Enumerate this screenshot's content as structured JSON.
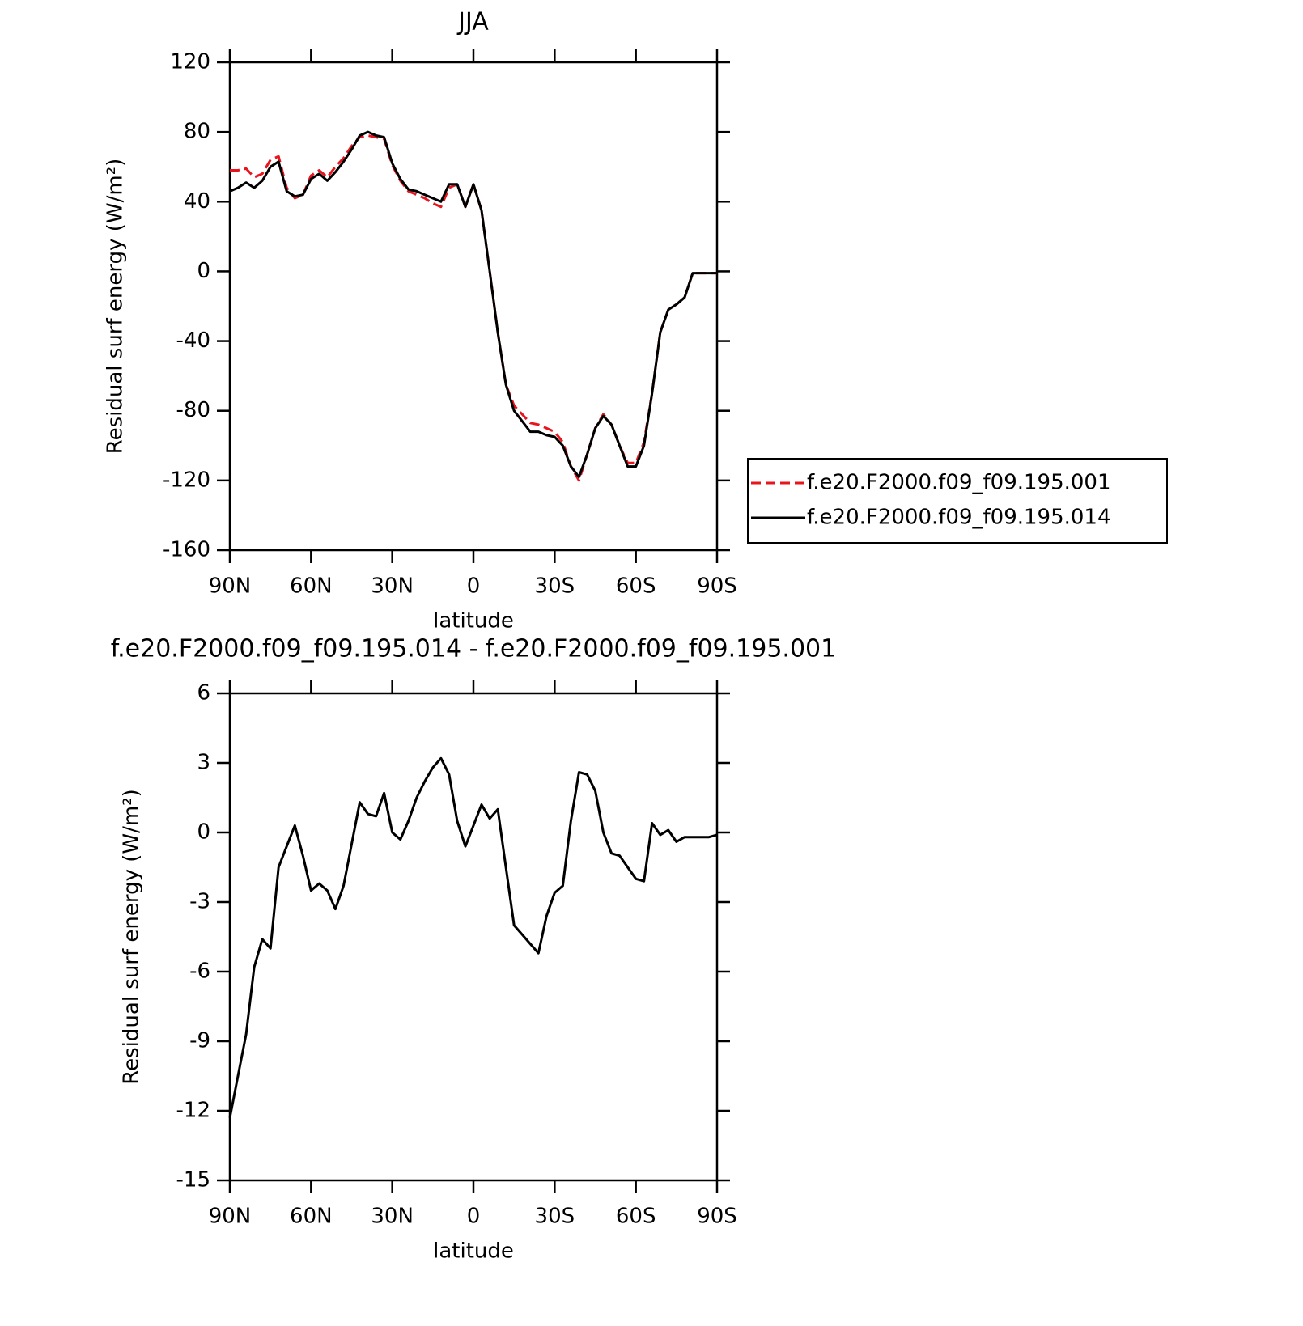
{
  "chart_data": [
    {
      "type": "line",
      "title": "JJA",
      "xlabel": "latitude",
      "ylabel": "Residual surf energy (W/m²)",
      "x": [
        90,
        87,
        84,
        81,
        78,
        75,
        72,
        69,
        66,
        63,
        60,
        57,
        54,
        51,
        48,
        45,
        42,
        39,
        36,
        33,
        30,
        27,
        24,
        21,
        18,
        15,
        12,
        9,
        6,
        3,
        0,
        -3,
        -6,
        -9,
        -12,
        -15,
        -18,
        -21,
        -24,
        -27,
        -30,
        -33,
        -36,
        -39,
        -42,
        -45,
        -48,
        -51,
        -54,
        -57,
        -60,
        -63,
        -66,
        -69,
        -72,
        -75,
        -78,
        -81,
        -84,
        -87,
        -90
      ],
      "series": [
        {
          "name": "f.e20.F2000.f09_f09.195.001",
          "color": "#e8141e",
          "linestyle": "dashed",
          "values": [
            58,
            58,
            59,
            54,
            56,
            64,
            66,
            48,
            42,
            44,
            55,
            58,
            54,
            60,
            65,
            72,
            77,
            78,
            77,
            76,
            61,
            52,
            46,
            44,
            42,
            39,
            37,
            48,
            50,
            37,
            50,
            35,
            0,
            -35,
            -65,
            -77,
            -82,
            -87,
            -88,
            -90,
            -92,
            -98,
            -112,
            -120,
            -105,
            -90,
            -82,
            -88,
            -100,
            -110,
            -110,
            -98,
            -70,
            -35,
            -22,
            -19,
            -15,
            -1,
            -1,
            -1,
            -1
          ]
        },
        {
          "name": "f.e20.F2000.f09_f09.195.014",
          "color": "#000000",
          "linestyle": "solid",
          "values": [
            46,
            48,
            51,
            48,
            52,
            60,
            63,
            46,
            43,
            44,
            53,
            56,
            52,
            57,
            63,
            70,
            78,
            80,
            78,
            77,
            62,
            53,
            47,
            46,
            44,
            42,
            40,
            50,
            50,
            37,
            50,
            35,
            0,
            -35,
            -65,
            -80,
            -86,
            -92,
            -92,
            -94,
            -95,
            -100,
            -112,
            -118,
            -105,
            -90,
            -83,
            -88,
            -100,
            -112,
            -112,
            -100,
            -70,
            -35,
            -22,
            -19,
            -15,
            -1,
            -1,
            -1,
            -1
          ]
        }
      ],
      "xlim": [
        90,
        -90
      ],
      "ylim": [
        -160,
        120
      ],
      "xticks": [
        {
          "value": 90,
          "label": "90N"
        },
        {
          "value": 60,
          "label": "60N"
        },
        {
          "value": 30,
          "label": "30N"
        },
        0,
        {
          "value": -30,
          "label": "30S"
        },
        {
          "value": -60,
          "label": "60S"
        },
        {
          "value": -90,
          "label": "90S"
        }
      ],
      "yticks": [
        -160,
        -120,
        -80,
        -40,
        0,
        40,
        80,
        120
      ],
      "legend": "right"
    },
    {
      "type": "line",
      "title": "f.e20.F2000.f09_f09.195.014 - f.e20.F2000.f09_f09.195.001",
      "xlabel": "latitude",
      "ylabel": "Residual surf energy (W/m²)",
      "x": [
        90,
        87,
        84,
        81,
        78,
        75,
        72,
        69,
        66,
        63,
        60,
        57,
        54,
        51,
        48,
        45,
        42,
        39,
        36,
        33,
        30,
        27,
        24,
        21,
        18,
        15,
        12,
        9,
        6,
        3,
        0,
        -3,
        -6,
        -9,
        -12,
        -15,
        -18,
        -21,
        -24,
        -27,
        -30,
        -33,
        -36,
        -39,
        -42,
        -45,
        -48,
        -51,
        -54,
        -57,
        -60,
        -63,
        -66,
        -69,
        -72,
        -75,
        -78,
        -81,
        -84,
        -87,
        -90
      ],
      "color": "#000000",
      "values": [
        -12.3,
        -10.5,
        -8.7,
        -5.8,
        -4.6,
        -5.0,
        -1.5,
        -0.6,
        0.3,
        -1.0,
        -2.5,
        -2.2,
        -2.5,
        -3.3,
        -2.3,
        -0.5,
        1.3,
        0.8,
        0.7,
        1.7,
        0.0,
        -0.3,
        0.5,
        1.5,
        2.2,
        2.8,
        3.2,
        2.5,
        0.5,
        -0.6,
        0.3,
        1.2,
        0.6,
        1.0,
        -1.5,
        -4.0,
        -4.4,
        -4.8,
        -5.2,
        -3.6,
        -2.6,
        -2.3,
        0.5,
        2.6,
        2.5,
        1.8,
        0.0,
        -0.9,
        -1.0,
        -1.5,
        -2.0,
        -2.1,
        0.4,
        -0.1,
        0.1,
        -0.4,
        -0.2,
        -0.2,
        -0.2,
        -0.2,
        -0.1
      ],
      "xlim": [
        90,
        -90
      ],
      "ylim": [
        -15,
        6
      ],
      "xticks": [
        {
          "value": 90,
          "label": "90N"
        },
        {
          "value": 60,
          "label": "60N"
        },
        {
          "value": 30,
          "label": "30N"
        },
        0,
        {
          "value": -30,
          "label": "30S"
        },
        {
          "value": -60,
          "label": "60S"
        },
        {
          "value": -90,
          "label": "90S"
        }
      ],
      "yticks": [
        -15,
        -12,
        -9,
        -6,
        -3,
        0,
        3,
        6
      ]
    }
  ]
}
